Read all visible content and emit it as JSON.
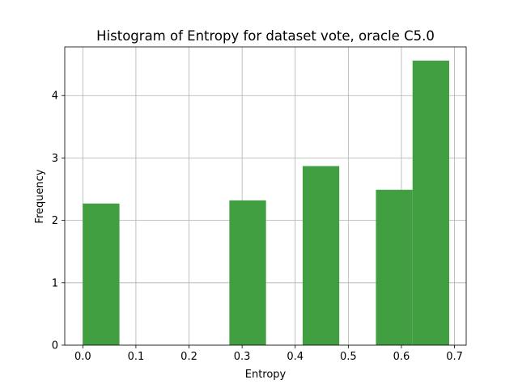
{
  "chart_data": {
    "type": "bar",
    "title": "Histogram of Entropy for dataset vote, oracle C5.0",
    "xlabel": "Entropy",
    "ylabel": "Frequency",
    "xlim": [
      -0.034,
      0.722
    ],
    "ylim": [
      0,
      4.78
    ],
    "xticks": [
      "0.0",
      "0.1",
      "0.2",
      "0.3",
      "0.4",
      "0.5",
      "0.6",
      "0.7"
    ],
    "yticks": [
      "0",
      "1",
      "2",
      "3",
      "4"
    ],
    "bins": [
      {
        "x0": 0.0,
        "x1": 0.069,
        "value": 2.27
      },
      {
        "x0": 0.069,
        "x1": 0.138,
        "value": 0
      },
      {
        "x0": 0.138,
        "x1": 0.207,
        "value": 0
      },
      {
        "x0": 0.207,
        "x1": 0.276,
        "value": 0
      },
      {
        "x0": 0.276,
        "x1": 0.345,
        "value": 2.32
      },
      {
        "x0": 0.345,
        "x1": 0.414,
        "value": 0
      },
      {
        "x0": 0.414,
        "x1": 0.483,
        "value": 2.87
      },
      {
        "x0": 0.483,
        "x1": 0.552,
        "value": 0
      },
      {
        "x0": 0.552,
        "x1": 0.621,
        "value": 2.49
      },
      {
        "x0": 0.621,
        "x1": 0.69,
        "value": 4.56
      }
    ],
    "grid": true,
    "bar_color": "#419f41"
  }
}
